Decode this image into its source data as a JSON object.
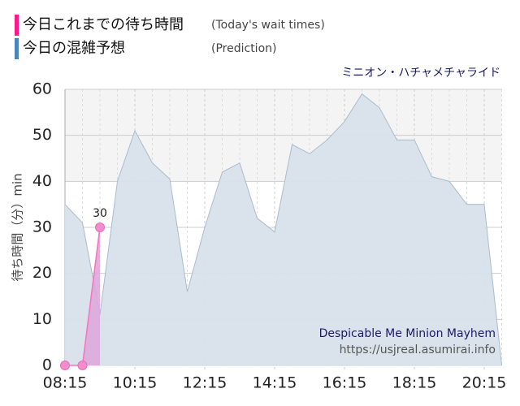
{
  "chart_data": {
    "type": "area",
    "attraction": "ミニオン・ハチャメチャライド",
    "ylabel": "待ち時間（分）min",
    "watermark": [
      "Despicable Me Minion Mayhem",
      "https://usjreal.asumirai.info"
    ],
    "xlim": [
      "08:15",
      "20:45"
    ],
    "xticks": [
      "08:15",
      "10:15",
      "12:15",
      "14:15",
      "16:15",
      "18:15",
      "20:15"
    ],
    "ylim": [
      0,
      60
    ],
    "yticks": [
      0,
      10,
      20,
      30,
      40,
      50,
      60
    ],
    "grid": true,
    "series": [
      {
        "name": "今日これまでの待ち時間",
        "name_en": "(Today's wait times)",
        "color": "#ff1a8c",
        "line_color": "#ff6fbf",
        "fill_color": "#dba9db",
        "x": [
          "08:15",
          "08:45",
          "09:15"
        ],
        "values": [
          0,
          0,
          30
        ],
        "data_labels": "last"
      },
      {
        "name": "今日の混雑予想",
        "name_en": "(Prediction)",
        "color": "#4a86b8",
        "line_color": "#a9bccd",
        "fill_color": "#d8e2eb",
        "x": [
          "08:15",
          "08:45",
          "09:15",
          "09:45",
          "10:15",
          "10:45",
          "11:15",
          "11:45",
          "12:15",
          "12:45",
          "13:15",
          "13:45",
          "14:15",
          "14:45",
          "15:15",
          "15:45",
          "16:15",
          "16:45",
          "17:15",
          "17:45",
          "18:15",
          "18:45",
          "19:15",
          "19:45",
          "20:15",
          "20:45"
        ],
        "values": [
          35,
          31,
          11,
          40,
          51,
          44,
          40.5,
          16,
          30,
          42,
          44,
          32,
          29,
          48,
          46,
          49,
          53,
          59,
          56,
          49,
          49,
          41,
          40,
          35,
          35,
          0
        ]
      }
    ]
  }
}
